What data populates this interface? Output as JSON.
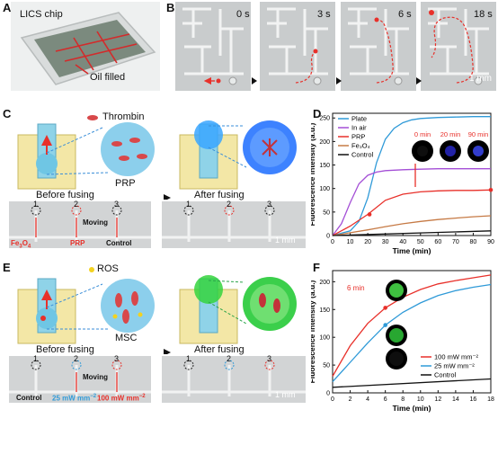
{
  "panels": {
    "A": {
      "letter": "A",
      "chip_label": "LICS chip",
      "oil_label": "Oil filled"
    },
    "B": {
      "letter": "B",
      "times": [
        "0 s",
        "3 s",
        "6 s",
        "18 s"
      ],
      "scale": "1 mm"
    },
    "C": {
      "letter": "C",
      "thrombin": "Thrombin",
      "prp": "PRP",
      "before": "Before fusing",
      "after": "After fusing",
      "nums": [
        "1",
        "2",
        "3"
      ],
      "moving": "Moving",
      "fe": "Fe",
      "fe_sub": "3",
      "fe_o": "O",
      "fe_sub2": "4",
      "prp_label": "PRP",
      "control": "Control",
      "scale": "1 mm"
    },
    "E": {
      "letter": "E",
      "ros": "ROS",
      "msc": "MSC",
      "before": "Before fusing",
      "after": "After fusing",
      "nums": [
        "1",
        "2",
        "3"
      ],
      "moving": "Moving",
      "control": "Control",
      "mw25": "25 mW mm",
      "mw100": "100 mW mm",
      "exp": "−2",
      "scale": "1 mm"
    }
  },
  "chart_data": [
    {
      "panel": "D",
      "type": "line",
      "xlabel": "Time (min)",
      "ylabel": "Fluorescence intensity (a.u.)",
      "xlim": [
        0,
        90
      ],
      "ylim": [
        0,
        260
      ],
      "xticks": [
        0,
        10,
        20,
        30,
        40,
        50,
        60,
        70,
        80,
        90
      ],
      "yticks": [
        0,
        50,
        100,
        150,
        200,
        250
      ],
      "legend": "top-left",
      "inset_labels": [
        "0 min",
        "20 min",
        "90 min"
      ],
      "series": [
        {
          "name": "Plate",
          "color": "#2f9ad8",
          "x": [
            0,
            10,
            15,
            20,
            25,
            30,
            35,
            40,
            45,
            50,
            60,
            70,
            80,
            90
          ],
          "y": [
            0,
            10,
            30,
            80,
            155,
            205,
            228,
            240,
            246,
            249,
            251,
            252,
            253,
            253
          ]
        },
        {
          "name": "In air",
          "color": "#a44fd6",
          "x": [
            0,
            5,
            10,
            15,
            20,
            25,
            30,
            40,
            50,
            60,
            70,
            80,
            90
          ],
          "y": [
            0,
            25,
            70,
            110,
            128,
            135,
            138,
            140,
            141,
            142,
            142,
            142,
            142
          ]
        },
        {
          "name": "PRP",
          "color": "#e8302a",
          "x": [
            0,
            10,
            20,
            30,
            40,
            50,
            60,
            70,
            80,
            90
          ],
          "y": [
            0,
            20,
            45,
            75,
            88,
            93,
            95,
            96,
            96,
            97
          ]
        },
        {
          "name": "Fe₃O₄",
          "color": "#c67a45",
          "x": [
            0,
            10,
            20,
            30,
            40,
            50,
            60,
            70,
            80,
            90
          ],
          "y": [
            0,
            6,
            12,
            19,
            25,
            30,
            34,
            37,
            40,
            42
          ]
        },
        {
          "name": "Control",
          "color": "#111111",
          "x": [
            0,
            90
          ],
          "y": [
            0,
            10
          ]
        }
      ],
      "markers": [
        {
          "x": 21,
          "y": 45,
          "color": "#e8302a"
        },
        {
          "x": 90,
          "y": 97,
          "color": "#e8302a"
        }
      ]
    },
    {
      "panel": "F",
      "type": "line",
      "xlabel": "Time (min)",
      "ylabel": "Fluorescence intensity (a.u.)",
      "xlim": [
        0,
        18
      ],
      "ylim": [
        0,
        220
      ],
      "xticks": [
        0,
        2,
        4,
        6,
        8,
        10,
        12,
        14,
        16,
        18
      ],
      "yticks": [
        0,
        50,
        100,
        150,
        200
      ],
      "legend": "bottom-right",
      "inset_labels": [
        "6 min"
      ],
      "series": [
        {
          "name": "100 mW mm⁻²",
          "color": "#e8302a",
          "x": [
            0,
            2,
            4,
            6,
            8,
            10,
            12,
            14,
            16,
            18
          ],
          "y": [
            30,
            85,
            125,
            153,
            172,
            186,
            196,
            202,
            207,
            212
          ]
        },
        {
          "name": "25 mW mm⁻²",
          "color": "#2f9ad8",
          "x": [
            0,
            2,
            4,
            6,
            8,
            10,
            12,
            14,
            16,
            18
          ],
          "y": [
            20,
            55,
            90,
            122,
            145,
            162,
            175,
            184,
            190,
            195
          ]
        },
        {
          "name": "Control",
          "color": "#111111",
          "x": [
            0,
            18
          ],
          "y": [
            10,
            25
          ]
        }
      ],
      "markers": [
        {
          "x": 6,
          "y": 153,
          "color": "#e8302a"
        },
        {
          "x": 6,
          "y": 122,
          "color": "#2f9ad8"
        }
      ]
    }
  ]
}
